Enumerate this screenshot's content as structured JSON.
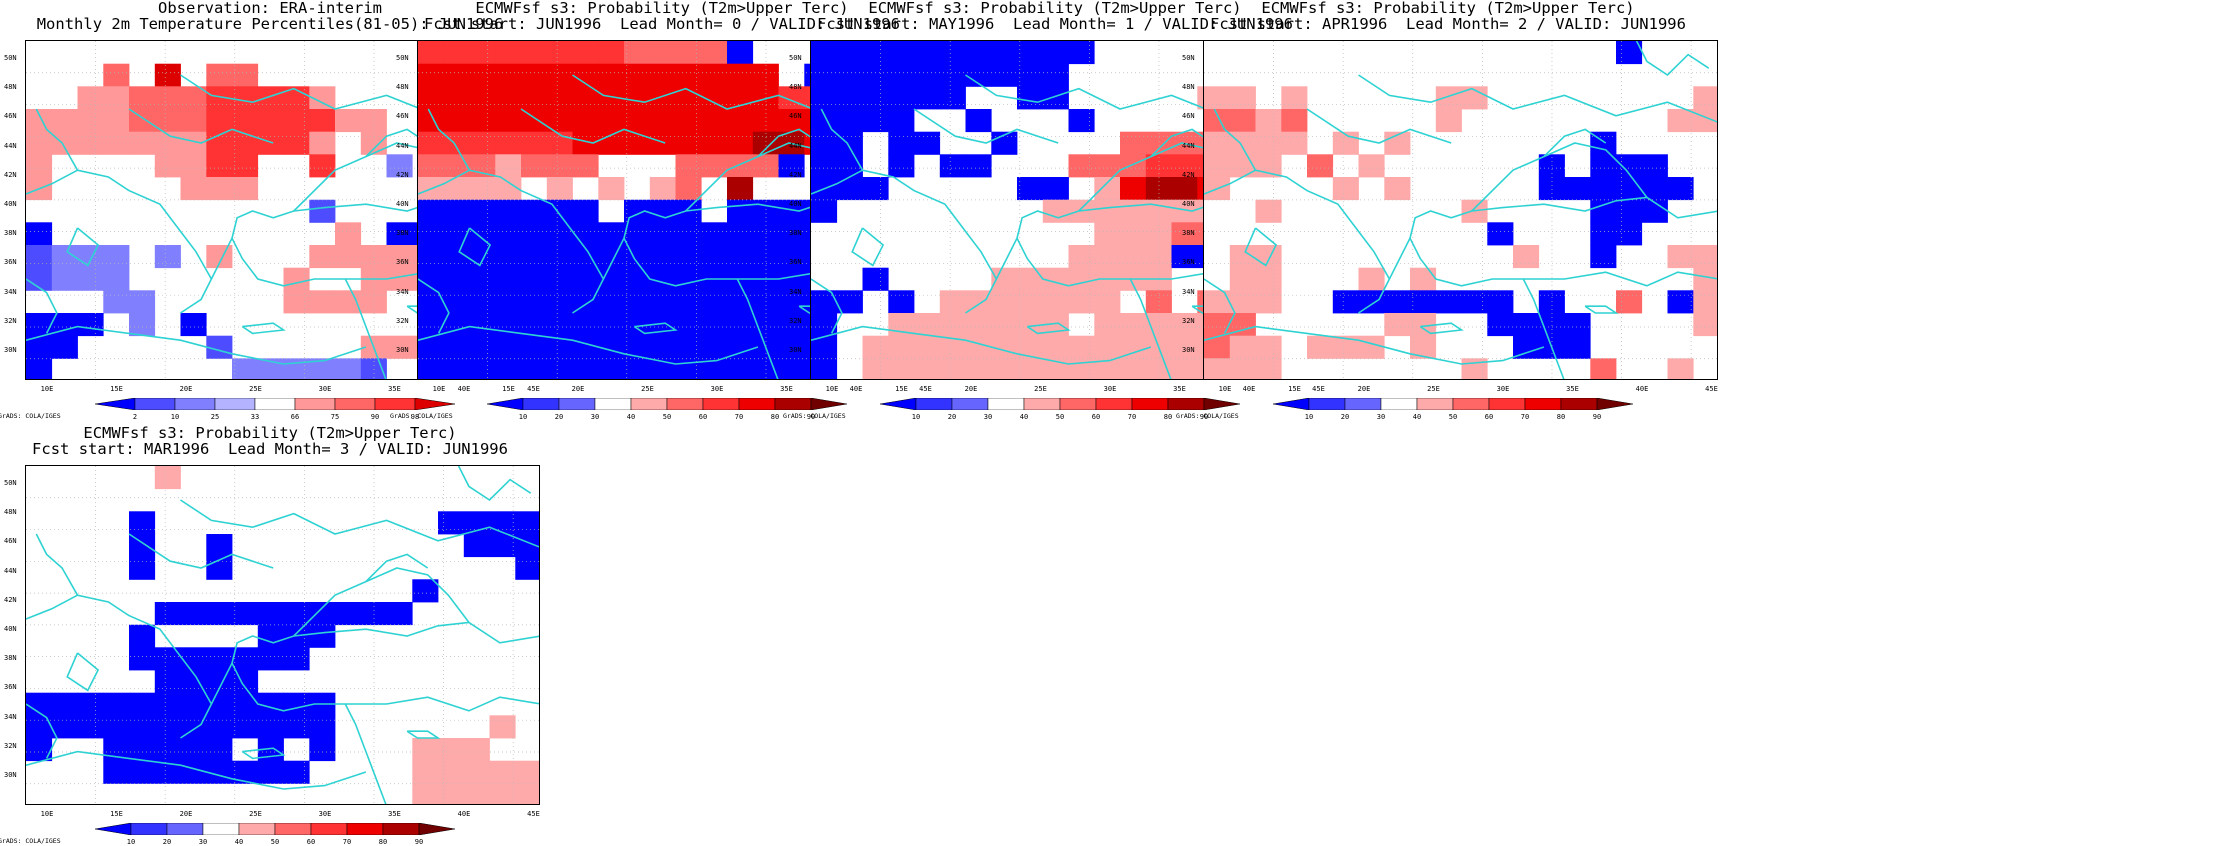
{
  "colors": {
    "coast": "#2fd2d2",
    "grid": "#b8b8b8",
    "blue": "#0000ff"
  },
  "credit": "GrADS: COLA/IGES",
  "lon_labels": [
    "10E",
    "15E",
    "20E",
    "25E",
    "30E",
    "35E",
    "40E",
    "45E"
  ],
  "lat_labels": [
    "50N",
    "48N",
    "46N",
    "44N",
    "42N",
    "40N",
    "38N",
    "36N",
    "34N",
    "32N",
    "30N"
  ],
  "panels": [
    {
      "title": "Observation: ERA-interim\nMonthly 2m Temperature Percentiles(81-05): JUN1996",
      "colorbar": {
        "labels": [
          "2",
          "10",
          "25",
          "33",
          "66",
          "75",
          "90",
          "98"
        ],
        "colors": [
          "#0000ff",
          "#4d4dff",
          "#8080ff",
          "#b3b3ff",
          "#ffffff",
          "#ff9999",
          "#ff6666",
          "#ff3333",
          "#dd0000"
        ]
      },
      "grid": [
        "........",
        "...6.8.66..........",
        "..5566677775........",
        "55556667777755......",
        "555555577775.5...211",
        "5....5577..7..3.2121",
        "5.....555.......1122",
        "...........2....11..",
        "1...........5.11.1..",
        "2333.3.5...55555.3..",
        "2333......5..5555...",
        "...33.....5555......",
        "111.3.1..........5..",
        "11.....2.....555....",
        "1.......333332.....5"
      ]
    },
    {
      "title": "ECMWFsf s3: Probability (T2m>Upper Terc)\nFcst start: JUN1996  Lead Month= 0 / VALID: JUN1996",
      "colorbar": {
        "labels": [
          "10",
          "20",
          "30",
          "40",
          "50",
          "60",
          "70",
          "80",
          "90"
        ],
        "colors": [
          "#0000ff",
          "#3333ff",
          "#6666ff",
          "#ffffff",
          "#ffaaaa",
          "#ff6666",
          "#ff3333",
          "#ee0000",
          "#aa0000",
          "#700000"
        ]
      },
      "grid": [
        "7777777766664....1..",
        "88888888888888.4..1.",
        "88888888888888777...",
        "88888888888888888.6.",
        "77777788888889986...",
        "6665666...66664.....",
        "5555.5.5.56.9.......",
        "1111111.111.111111..",
        "11111111111111111111",
        "11111111111111111111",
        "11111111111111111111",
        "11111111111111111111",
        "11111111111111111111",
        "11111111111111111111",
        "11111111111111111111"
      ]
    },
    {
      "title": "ECMWFsf s3: Probability (T2m>Upper Terc)\nFcst start: MAY1996  Lead Month= 1 / VALID: JUN1996",
      "colorbar": {
        "labels": [
          "10",
          "20",
          "30",
          "40",
          "50",
          "60",
          "70",
          "80",
          "90"
        ],
        "colors": [
          "#0000ff",
          "#3333ff",
          "#6666ff",
          "#ffffff",
          "#ffaaaa",
          "#ff6666",
          "#ff3333",
          "#ee0000",
          "#aa0000",
          "#700000"
        ]
      },
      "grid": [
        "11111111111.........",
        "1111111111.........5",
        "111111..11.....55...",
        "1111..1...1.....666.",
        "11.11..1....66666665",
        "11.1.11...6667777666",
        "111.....11.5899877..",
        "1........5555555....",
        "...........555666...",
        "..........5555111...",
        "..1....5555555......",
        "11.1.5555555.6.6.5..",
        "1..5555555.555556...",
        "1.5555555555555555..",
        "1.5555555555555555.."
      ]
    },
    {
      "title": "ECMWFsf s3: Probability (T2m>Upper Terc)\nFcst start: APR1996  Lead Month= 2 / VALID: JUN1996",
      "colorbar": {
        "labels": [
          "10",
          "20",
          "30",
          "40",
          "50",
          "60",
          "70",
          "80",
          "90"
        ],
        "colors": [
          "#0000ff",
          "#3333ff",
          "#6666ff",
          "#ffffff",
          "#ffaaaa",
          "#ff6666",
          "#ff3333",
          "#ee0000",
          "#aa0000",
          "#700000"
        ]
      },
      "grid": [
        "................1...",
        "....................",
        "55.5.....55........5",
        "6656.....5........55",
        "5555.5.5.......1....",
        "555.6.5......1.111..",
        "5....5.5.....111111.",
        "..5.......5....111..",
        "...........1...11...",
        ".55.........5..1..55",
        ".55...5.5..........5",
        "555..1111111.1..6.15",
        "66.....55..1111....5",
        "655.555.5...111.....",
        "555.......5....6..5."
      ]
    },
    {
      "title": "ECMWFsf s3: Probability (T2m>Upper Terc)\nFcst start: MAR1996  Lead Month= 3 / VALID: JUN1996",
      "colorbar": {
        "labels": [
          "10",
          "20",
          "30",
          "40",
          "50",
          "60",
          "70",
          "80",
          "90"
        ],
        "colors": [
          "#0000ff",
          "#3333ff",
          "#6666ff",
          "#ffffff",
          "#ffaaaa",
          "#ff6666",
          "#ff3333",
          "#ee0000",
          "#aa0000",
          "#700000"
        ]
      },
      "grid": [
        ".....5..............",
        "....................",
        "....1...........1111",
        "....1..1.........111",
        "....1..1...........1",
        "...............1....",
        ".....1111111111.....",
        "....1....111........",
        "....1111111.........",
        ".....1111...........",
        "111111111111........",
        "111111111111......5.",
        "1..11111.1.1...555..",
        "...11111111....55555",
        "...............55555"
      ]
    }
  ]
}
